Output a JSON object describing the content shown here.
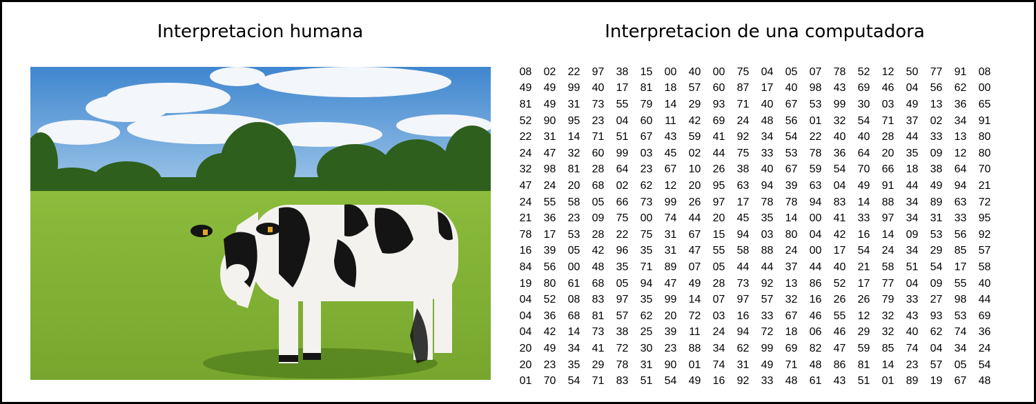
{
  "titles": {
    "left": "Interpretacion humana",
    "right": "Interpretacion de una computadora"
  },
  "photo": {
    "subject": "holstein-cow-in-meadow",
    "colors": {
      "sky": "#4f8fd2",
      "cloud": "#f3f6fa",
      "grass": "#86b33a",
      "trees": "#2f5f1d",
      "cow_black": "#141414",
      "cow_white": "#f4f2ee"
    }
  },
  "numbers": [
    [
      "08",
      "02",
      "22",
      "97",
      "38",
      "15",
      "00",
      "40",
      "00",
      "75",
      "04",
      "05",
      "07",
      "78",
      "52",
      "12",
      "50",
      "77",
      "91",
      "08"
    ],
    [
      "49",
      "49",
      "99",
      "40",
      "17",
      "81",
      "18",
      "57",
      "60",
      "87",
      "17",
      "40",
      "98",
      "43",
      "69",
      "46",
      "04",
      "56",
      "62",
      "00"
    ],
    [
      "81",
      "49",
      "31",
      "73",
      "55",
      "79",
      "14",
      "29",
      "93",
      "71",
      "40",
      "67",
      "53",
      "99",
      "30",
      "03",
      "49",
      "13",
      "36",
      "65"
    ],
    [
      "52",
      "90",
      "95",
      "23",
      "04",
      "60",
      "11",
      "42",
      "69",
      "24",
      "48",
      "56",
      "01",
      "32",
      "54",
      "71",
      "37",
      "02",
      "34",
      "91"
    ],
    [
      "22",
      "31",
      "14",
      "71",
      "51",
      "67",
      "43",
      "59",
      "41",
      "92",
      "34",
      "54",
      "22",
      "40",
      "40",
      "28",
      "44",
      "33",
      "13",
      "80"
    ],
    [
      "24",
      "47",
      "32",
      "60",
      "99",
      "03",
      "45",
      "02",
      "44",
      "75",
      "33",
      "53",
      "78",
      "36",
      "64",
      "20",
      "35",
      "09",
      "12",
      "80"
    ],
    [
      "32",
      "98",
      "81",
      "28",
      "64",
      "23",
      "67",
      "10",
      "26",
      "38",
      "40",
      "67",
      "59",
      "54",
      "70",
      "66",
      "18",
      "38",
      "64",
      "70"
    ],
    [
      "47",
      "24",
      "20",
      "68",
      "02",
      "62",
      "12",
      "20",
      "95",
      "63",
      "94",
      "39",
      "63",
      "04",
      "49",
      "91",
      "44",
      "49",
      "94",
      "21"
    ],
    [
      "24",
      "55",
      "58",
      "05",
      "66",
      "73",
      "99",
      "26",
      "97",
      "17",
      "78",
      "78",
      "94",
      "83",
      "14",
      "88",
      "34",
      "89",
      "63",
      "72"
    ],
    [
      "21",
      "36",
      "23",
      "09",
      "75",
      "00",
      "74",
      "44",
      "20",
      "45",
      "35",
      "14",
      "00",
      "41",
      "33",
      "97",
      "34",
      "31",
      "33",
      "95"
    ],
    [
      "78",
      "17",
      "53",
      "28",
      "22",
      "75",
      "31",
      "67",
      "15",
      "94",
      "03",
      "80",
      "04",
      "42",
      "16",
      "14",
      "09",
      "53",
      "56",
      "92"
    ],
    [
      "16",
      "39",
      "05",
      "42",
      "96",
      "35",
      "31",
      "47",
      "55",
      "58",
      "88",
      "24",
      "00",
      "17",
      "54",
      "24",
      "34",
      "29",
      "85",
      "57"
    ],
    [
      "84",
      "56",
      "00",
      "48",
      "35",
      "71",
      "89",
      "07",
      "05",
      "44",
      "44",
      "37",
      "44",
      "40",
      "21",
      "58",
      "51",
      "54",
      "17",
      "58"
    ],
    [
      "19",
      "80",
      "61",
      "68",
      "05",
      "94",
      "47",
      "49",
      "28",
      "73",
      "92",
      "13",
      "86",
      "52",
      "17",
      "77",
      "04",
      "09",
      "55",
      "40"
    ],
    [
      "04",
      "52",
      "08",
      "83",
      "97",
      "35",
      "99",
      "14",
      "07",
      "97",
      "57",
      "32",
      "16",
      "26",
      "26",
      "79",
      "33",
      "27",
      "98",
      "44"
    ],
    [
      "04",
      "36",
      "68",
      "81",
      "57",
      "62",
      "20",
      "72",
      "03",
      "16",
      "33",
      "67",
      "46",
      "55",
      "12",
      "32",
      "43",
      "93",
      "53",
      "69"
    ],
    [
      "04",
      "42",
      "14",
      "73",
      "38",
      "25",
      "39",
      "11",
      "24",
      "94",
      "72",
      "18",
      "06",
      "46",
      "29",
      "32",
      "40",
      "62",
      "74",
      "36"
    ],
    [
      "20",
      "49",
      "34",
      "41",
      "72",
      "30",
      "23",
      "88",
      "34",
      "62",
      "99",
      "69",
      "82",
      "47",
      "59",
      "85",
      "74",
      "04",
      "34",
      "24"
    ],
    [
      "20",
      "23",
      "35",
      "29",
      "78",
      "31",
      "90",
      "01",
      "74",
      "31",
      "49",
      "71",
      "48",
      "86",
      "81",
      "14",
      "23",
      "57",
      "05",
      "54"
    ],
    [
      "01",
      "70",
      "54",
      "71",
      "83",
      "51",
      "54",
      "49",
      "16",
      "92",
      "33",
      "48",
      "61",
      "43",
      "51",
      "01",
      "89",
      "19",
      "67",
      "48"
    ]
  ]
}
